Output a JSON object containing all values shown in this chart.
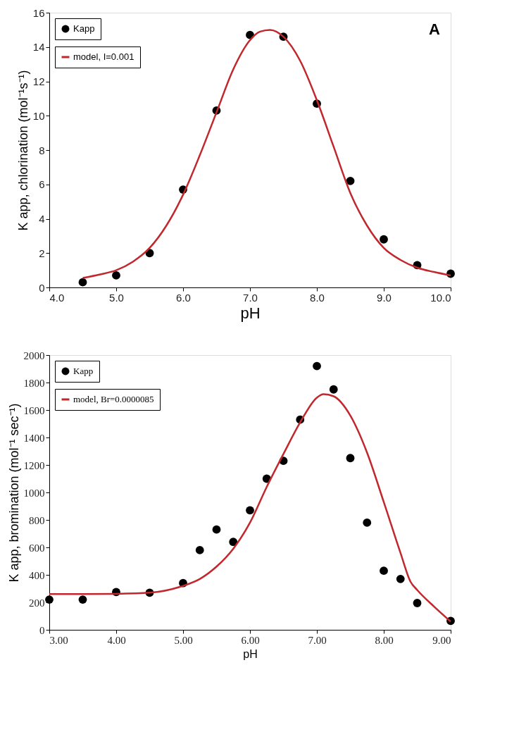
{
  "chart_data": [
    {
      "type": "scatter",
      "xlabel": "pH",
      "ylabel": "K app, chlorination (mol⁻¹s⁻¹)",
      "legend": "top left",
      "grid": false,
      "annotations": [
        "A"
      ],
      "xlim": [
        4,
        10
      ],
      "xticks": [
        {
          "value": 4,
          "label": "4.0"
        },
        {
          "value": 5,
          "label": "5.0"
        },
        {
          "value": 6,
          "label": "6.0"
        },
        {
          "value": 7,
          "label": "7.0"
        },
        {
          "value": 8,
          "label": "8.0"
        },
        {
          "value": 9,
          "label": "9.0"
        },
        {
          "value": 10,
          "label": "10.0"
        }
      ],
      "ylim": [
        0,
        16
      ],
      "yticks": [
        0,
        2,
        4,
        6,
        8,
        10,
        12,
        14,
        16
      ],
      "series": [
        {
          "name": "Kapp",
          "marker": "circle",
          "color": "#000000",
          "x": [
            4.5,
            5,
            5.5,
            6,
            6.5,
            7,
            7.5,
            8,
            8.5,
            9,
            9.5,
            10
          ],
          "values": [
            0.3,
            0.7,
            2.0,
            5.7,
            10.3,
            14.7,
            14.6,
            10.7,
            6.2,
            2.8,
            1.3,
            0.8
          ]
        },
        {
          "name": "model, I=0.001",
          "type": "line",
          "marker": "none",
          "line_style": "solid",
          "color": "#c0282d",
          "x": [
            4.5,
            4.75,
            5.0,
            5.25,
            5.5,
            5.75,
            6.0,
            6.25,
            6.5,
            6.75,
            7.0,
            7.15,
            7.3,
            7.5,
            7.75,
            8.0,
            8.25,
            8.5,
            8.75,
            9.0,
            9.25,
            9.5,
            9.75,
            10.0
          ],
          "values": [
            0.55,
            0.75,
            1.0,
            1.5,
            2.3,
            3.6,
            5.4,
            7.7,
            10.2,
            12.7,
            14.4,
            14.9,
            15.0,
            14.6,
            13.2,
            10.9,
            8.2,
            5.5,
            3.6,
            2.3,
            1.6,
            1.15,
            0.9,
            0.7
          ]
        }
      ]
    },
    {
      "type": "scatter",
      "xlabel": "pH",
      "ylabel": "K app, bromination  (mol⁻¹ sec⁻¹)",
      "legend": "top left",
      "grid": false,
      "xlim": [
        3,
        9
      ],
      "xticks": [
        {
          "value": 3,
          "label": "3.00"
        },
        {
          "value": 4,
          "label": "4.00"
        },
        {
          "value": 5,
          "label": "5.00"
        },
        {
          "value": 6,
          "label": "6.00"
        },
        {
          "value": 7,
          "label": "7.00"
        },
        {
          "value": 8,
          "label": "8.00"
        },
        {
          "value": 9,
          "label": "9.00"
        }
      ],
      "ylim": [
        0,
        2000
      ],
      "yticks": [
        0,
        200,
        400,
        600,
        800,
        1000,
        1200,
        1400,
        1600,
        1800,
        2000
      ],
      "series": [
        {
          "name": "Kapp",
          "marker": "circle",
          "color": "#000000",
          "x": [
            3,
            3.5,
            4,
            4.5,
            5,
            5.25,
            5.5,
            5.75,
            6,
            6.25,
            6.5,
            6.75,
            7,
            7.25,
            7.5,
            7.75,
            8,
            8.25,
            8.5,
            9
          ],
          "values": [
            220,
            220,
            275,
            270,
            340,
            580,
            730,
            640,
            870,
            1100,
            1230,
            1530,
            1920,
            1750,
            1250,
            780,
            430,
            370,
            195,
            65
          ]
        },
        {
          "name": "model, Br=0.0000085",
          "type": "line",
          "marker": "none",
          "line_style": "solid",
          "color": "#c0282d",
          "x": [
            3,
            3.5,
            4,
            4.5,
            5,
            5.25,
            5.5,
            5.75,
            6,
            6.25,
            6.5,
            6.75,
            7,
            7.1,
            7.25,
            7.5,
            7.75,
            8,
            8.25,
            8.4,
            8.5,
            8.75,
            9
          ],
          "values": [
            260,
            260,
            262,
            270,
            320,
            370,
            460,
            590,
            780,
            1040,
            1280,
            1510,
            1690,
            1715,
            1700,
            1560,
            1290,
            930,
            560,
            350,
            290,
            170,
            60
          ]
        }
      ]
    }
  ]
}
